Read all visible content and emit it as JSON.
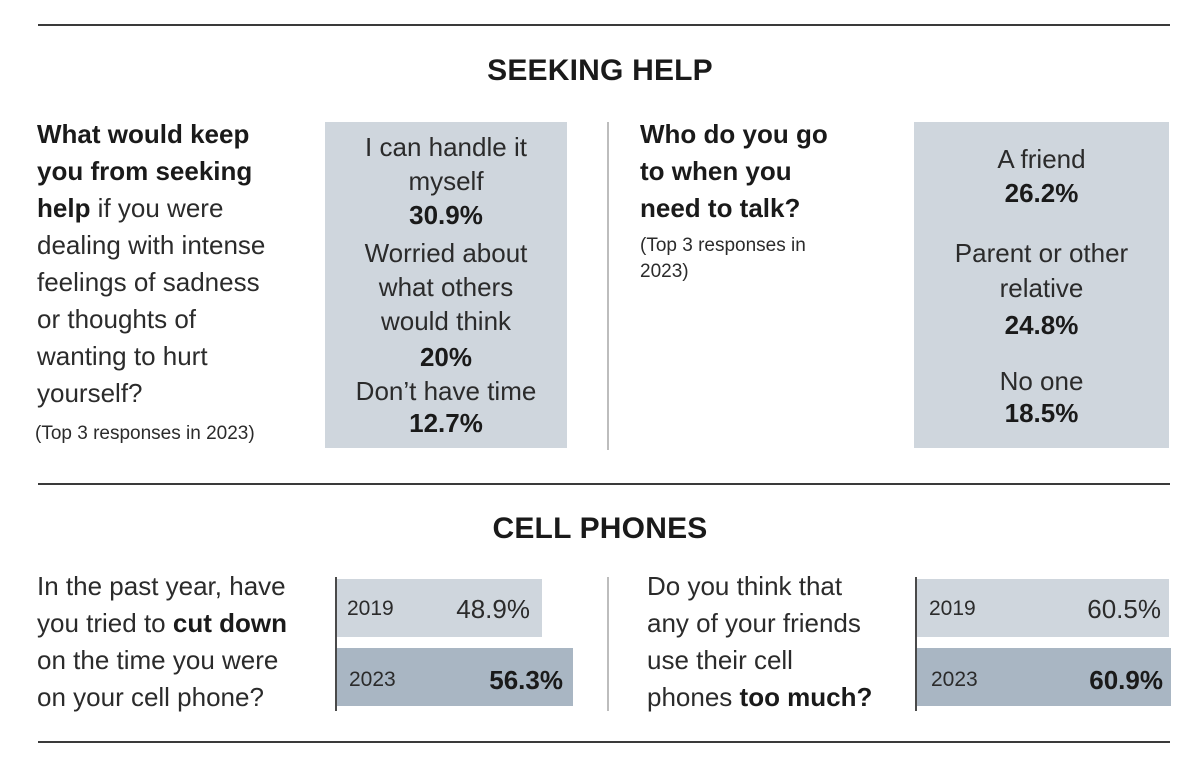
{
  "sections": {
    "seeking_help": {
      "title": "SEEKING HELP",
      "left": {
        "q_line1": "What would keep",
        "q_line2": "you from seeking",
        "q_line3_bold": "help",
        "q_line3_rest": " if you were",
        "q_line4": "dealing with intense",
        "q_line5": "feelings of sadness",
        "q_line6": "or thoughts of",
        "q_line7": "wanting to hurt",
        "q_line8": "yourself?",
        "note": "(Top 3 responses in 2023)",
        "responses": [
          {
            "line1": "I can handle it",
            "line2": "myself",
            "pct": "30.9%"
          },
          {
            "line1": "Worried about",
            "line2": "what others",
            "line3": "would think",
            "pct": "20%"
          },
          {
            "line1": "Don’t have time",
            "pct": "12.7%"
          }
        ]
      },
      "right": {
        "q_line1": "Who do you go",
        "q_line2": "to when you",
        "q_line3": "need to talk?",
        "note_line1": "(Top 3 responses in",
        "note_line2": "2023)",
        "responses": [
          {
            "line1": "A friend",
            "pct": "26.2%"
          },
          {
            "line1": "Parent or other",
            "line2": "relative",
            "pct": "24.8%"
          },
          {
            "line1": "No one",
            "pct": "18.5%"
          }
        ]
      }
    },
    "cell_phones": {
      "title": "CELL PHONES",
      "left": {
        "q_line1": "In the past year, have",
        "q_line2_pre": "you tried to ",
        "q_line2_bold": "cut down",
        "q_line3": "on the time you were",
        "q_line4": "on your cell phone?",
        "bars": [
          {
            "year": "2019",
            "label": "48.9%",
            "value": 48.9,
            "color": "#cfd6dd"
          },
          {
            "year": "2023",
            "label": "56.3%",
            "value": 56.3,
            "color": "#a9b6c3"
          }
        ]
      },
      "right": {
        "q_line1": "Do you think that",
        "q_line2": "any of your friends",
        "q_line3": "use their cell",
        "q_line4_pre": "phones ",
        "q_line4_bold": "too much?",
        "bars": [
          {
            "year": "2019",
            "label": "60.5%",
            "value": 60.5,
            "color": "#cfd6dd"
          },
          {
            "year": "2023",
            "label": "60.9%",
            "value": 60.9,
            "color": "#a9b6c3"
          }
        ]
      }
    }
  }
}
